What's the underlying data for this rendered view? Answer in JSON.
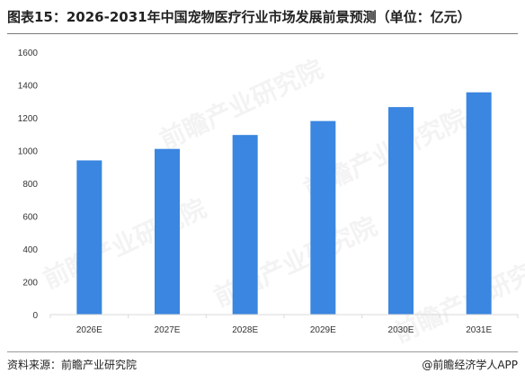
{
  "header": {
    "title": "图表15：2026-2031年中国宠物医疗行业市场发展前景预测（单位：亿元）"
  },
  "footer": {
    "source": "资料来源：前瞻产业研究院",
    "brand": "@前瞻经济学人APP"
  },
  "watermark": {
    "text": "前瞻产业研究院"
  },
  "colors": {
    "bar": "#3a86e0",
    "axis": "#d9d9d9"
  },
  "chart_data": {
    "type": "bar",
    "categories": [
      "2026E",
      "2027E",
      "2028E",
      "2029E",
      "2030E",
      "2031E"
    ],
    "values": [
      940,
      1010,
      1095,
      1180,
      1265,
      1355
    ],
    "yticks": [
      0,
      200,
      400,
      600,
      800,
      1000,
      1200,
      1400,
      1600
    ],
    "ylim": [
      0,
      1600
    ],
    "title": "",
    "xlabel": "",
    "ylabel": "",
    "grid": false,
    "legend": "none"
  }
}
